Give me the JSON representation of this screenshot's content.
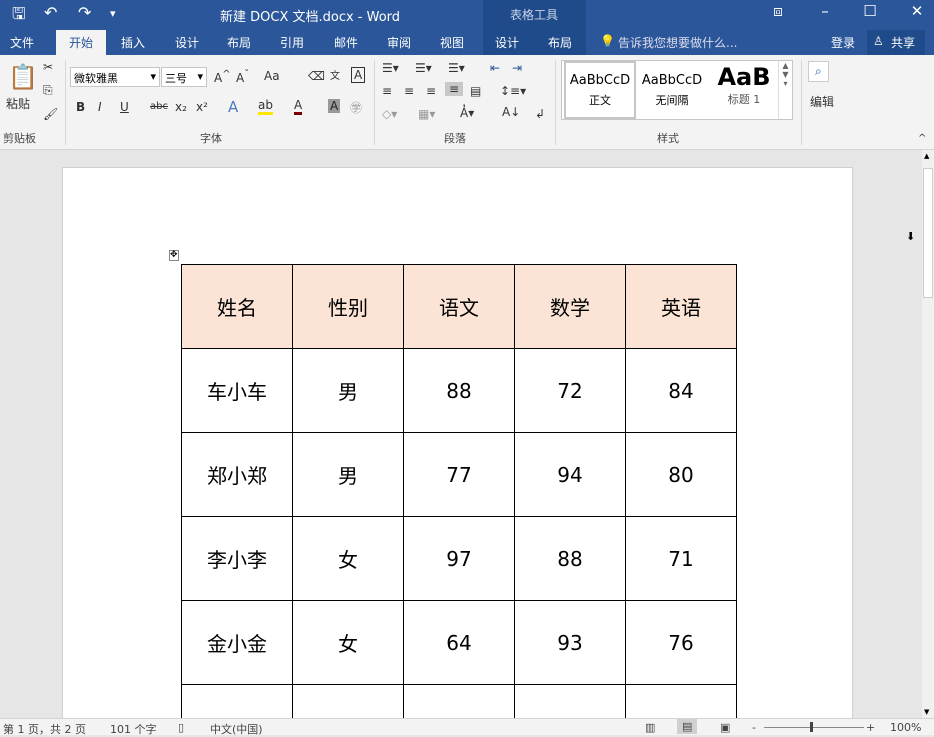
{
  "titlebar": {
    "title": "新建 DOCX 文档.docx - Word",
    "context_title": "表格工具"
  },
  "tabs": [
    "文件",
    "开始",
    "插入",
    "设计",
    "布局",
    "引用",
    "邮件",
    "审阅",
    "视图",
    "设计",
    "布局"
  ],
  "tell_me": "告诉我您想要做什么...",
  "login": "登录",
  "share": "共享",
  "ribbon": {
    "clipboard": {
      "paste": "粘贴",
      "label": "剪贴板"
    },
    "font": {
      "name": "微软雅黑",
      "size": "三号",
      "label": "字体",
      "case": "Aa"
    },
    "paragraph": {
      "label": "段落"
    },
    "styles": {
      "label": "样式",
      "items": [
        {
          "preview": "AaBbCcD",
          "name": "正文"
        },
        {
          "preview": "AaBbCcD",
          "name": "无间隔"
        },
        {
          "preview": "AaB",
          "name": "标题 1"
        }
      ]
    },
    "editing": {
      "label": "编辑"
    }
  },
  "table": {
    "headers": [
      "姓名",
      "性别",
      "语文",
      "数学",
      "英语"
    ],
    "rows": [
      [
        "车小车",
        "男",
        "88",
        "72",
        "84"
      ],
      [
        "郑小郑",
        "男",
        "77",
        "94",
        "80"
      ],
      [
        "李小李",
        "女",
        "97",
        "88",
        "71"
      ],
      [
        "金小金",
        "女",
        "64",
        "93",
        "76"
      ]
    ],
    "header_color": "#fbe4d5"
  },
  "status": {
    "page": "第 1 页，共 2 页",
    "words": "101 个字",
    "lang": "中文(中国)",
    "zoom": "100%"
  }
}
